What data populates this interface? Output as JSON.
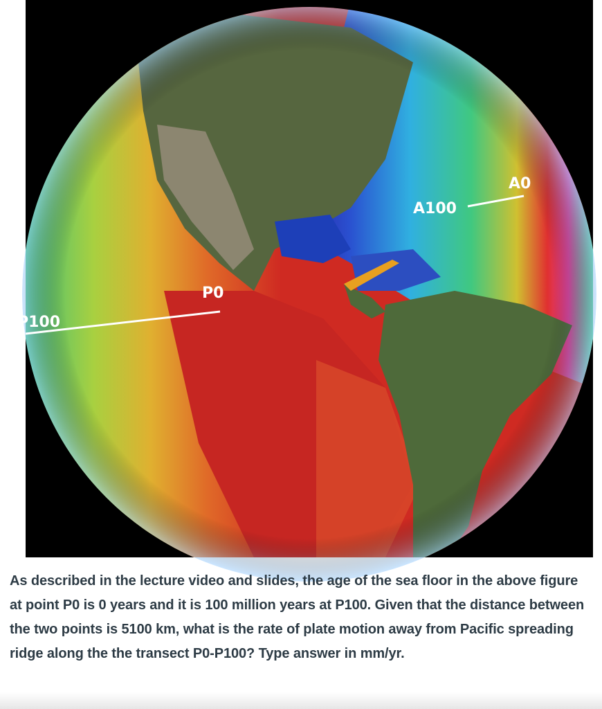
{
  "figure": {
    "labels": [
      "A0",
      "A100",
      "P0",
      "P100"
    ]
  },
  "question": {
    "text": "As described in the lecture video and slides, the age of the sea floor in the above figure at point P0 is 0 years and it is 100 million years at P100.  Given that the distance between the two points is 5100 km, what is the rate of plate motion away from Pacific spreading ridge along the the transect P0-P100? Type answer in mm/yr."
  }
}
